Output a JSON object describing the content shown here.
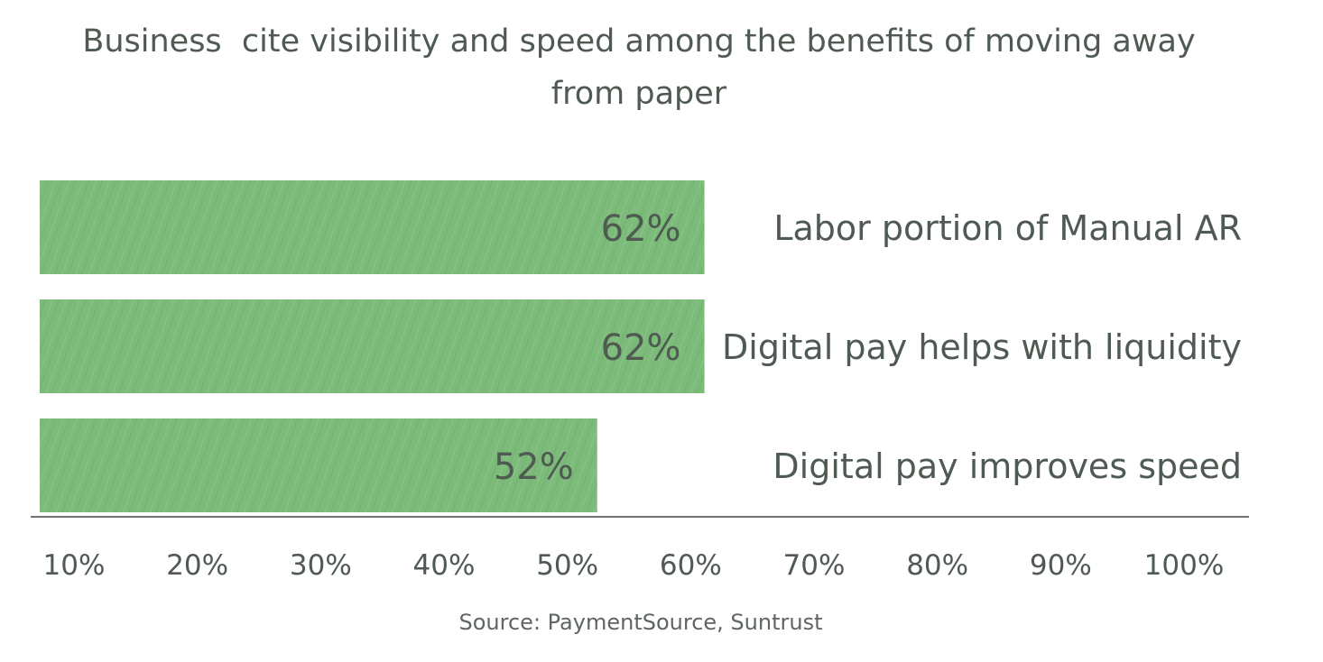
{
  "chart_data": {
    "type": "bar",
    "orientation": "horizontal",
    "title_lines": [
      "Business  cite visibility and speed among the benefits of moving away",
      "from paper"
    ],
    "categories": [
      "Labor portion of Manual AR",
      "Digital pay helps with liquidity",
      "Digital pay improves speed"
    ],
    "values": [
      62,
      62,
      52
    ],
    "value_labels": [
      "62%",
      "62%",
      "52%"
    ],
    "xticks": [
      10,
      20,
      30,
      40,
      50,
      60,
      70,
      80,
      90,
      100
    ],
    "xtick_labels": [
      "10%",
      "20%",
      "30%",
      "40%",
      "50%",
      "60%",
      "70%",
      "80%",
      "90%",
      "100%"
    ],
    "xlim": [
      10,
      100
    ],
    "grid": false,
    "bar_color": "#7dbb7b",
    "text_color": "#4f5a52",
    "source": "Source: PaymentSource, Suntrust"
  }
}
